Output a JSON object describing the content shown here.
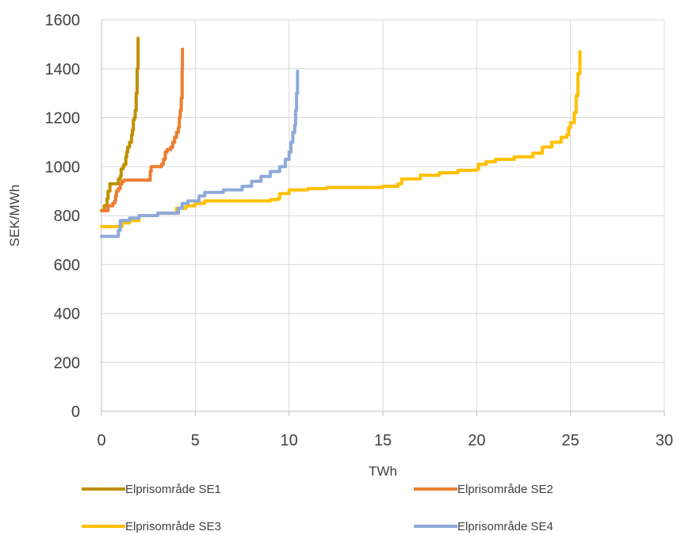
{
  "chart_data": {
    "type": "line",
    "title": "",
    "xlabel": "TWh",
    "ylabel": "SEK/MWh",
    "xlim": [
      0,
      30
    ],
    "ylim": [
      0,
      1600
    ],
    "xticks": [
      0,
      5,
      10,
      15,
      20,
      25,
      30
    ],
    "yticks": [
      0,
      200,
      400,
      600,
      800,
      1000,
      1200,
      1400,
      1600
    ],
    "grid": true,
    "legend_position": "bottom",
    "series": [
      {
        "name": "Elprisområde SE1",
        "color": "#BF9000",
        "x": [
          0,
          0.1,
          0.15,
          0.2,
          0.3,
          0.35,
          0.4,
          0.45,
          0.5,
          0.7,
          0.8,
          0.9,
          1.0,
          1.05,
          1.1,
          1.15,
          1.2,
          1.3,
          1.35,
          1.4,
          1.5,
          1.55,
          1.6,
          1.65,
          1.7,
          1.75,
          1.8,
          1.85,
          1.9,
          1.95
        ],
        "y": [
          820,
          820,
          840,
          840,
          870,
          900,
          900,
          930,
          930,
          930,
          930,
          950,
          960,
          990,
          990,
          1000,
          1010,
          1040,
          1060,
          1080,
          1100,
          1100,
          1130,
          1150,
          1190,
          1200,
          1230,
          1300,
          1400,
          1525
        ]
      },
      {
        "name": "Elprisområde SE2",
        "color": "#ED7D31",
        "x": [
          0,
          0.25,
          0.35,
          0.5,
          0.6,
          0.7,
          0.75,
          0.8,
          0.9,
          1.0,
          1.1,
          1.2,
          1.5,
          2.0,
          2.5,
          2.6,
          2.65,
          3.0,
          3.2,
          3.3,
          3.4,
          3.5,
          3.7,
          3.8,
          3.9,
          4.0,
          4.05,
          4.1,
          4.15,
          4.2,
          4.25,
          4.3,
          4.32
        ],
        "y": [
          820,
          820,
          840,
          840,
          850,
          860,
          880,
          900,
          910,
          930,
          940,
          945,
          945,
          945,
          945,
          980,
          1000,
          1000,
          1010,
          1030,
          1060,
          1070,
          1080,
          1100,
          1120,
          1140,
          1140,
          1160,
          1200,
          1230,
          1280,
          1400,
          1480
        ]
      },
      {
        "name": "Elprisområde SE3",
        "color": "#FFC000",
        "x": [
          0,
          1.0,
          1.1,
          1.5,
          2.0,
          3.0,
          4.0,
          4.5,
          5.0,
          5.5,
          6.0,
          8.0,
          9.0,
          9.4,
          9.5,
          10.0,
          11.0,
          12.0,
          14.0,
          15.0,
          15.8,
          16.0,
          17.0,
          18.0,
          19.0,
          20.0,
          20.1,
          20.5,
          21.0,
          22.0,
          23.0,
          23.5,
          24.0,
          24.5,
          24.8,
          24.9,
          25.0,
          25.2,
          25.3,
          25.4,
          25.5
        ],
        "y": [
          755,
          755,
          770,
          780,
          800,
          810,
          830,
          840,
          850,
          860,
          860,
          860,
          865,
          870,
          890,
          905,
          910,
          915,
          915,
          920,
          930,
          950,
          965,
          975,
          985,
          990,
          1010,
          1020,
          1030,
          1040,
          1055,
          1080,
          1100,
          1120,
          1130,
          1160,
          1180,
          1220,
          1290,
          1380,
          1470
        ]
      },
      {
        "name": "Elprisområde SE4",
        "color": "#8EA9DB",
        "x": [
          0,
          0.8,
          0.9,
          1.0,
          1.5,
          2.0,
          3.0,
          4.0,
          4.1,
          4.3,
          4.6,
          5.2,
          5.5,
          6.5,
          7.5,
          8.0,
          8.5,
          9.0,
          9.5,
          9.8,
          10.0,
          10.1,
          10.2,
          10.3,
          10.35,
          10.4,
          10.45
        ],
        "y": [
          715,
          715,
          740,
          780,
          790,
          800,
          810,
          810,
          830,
          850,
          860,
          880,
          895,
          905,
          920,
          940,
          960,
          980,
          1000,
          1030,
          1060,
          1100,
          1140,
          1170,
          1230,
          1300,
          1390
        ]
      }
    ]
  }
}
